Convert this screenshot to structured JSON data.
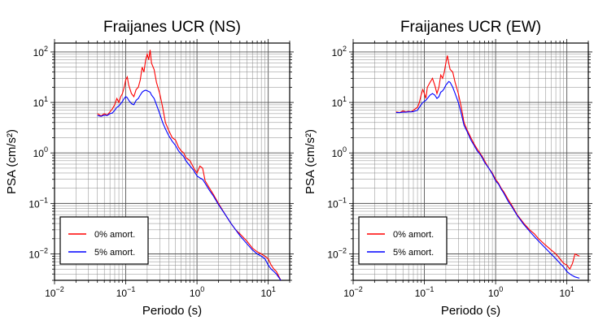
{
  "chart_data": [
    {
      "type": "line",
      "title": "Fraijanes UCR (NS)",
      "xlabel": "Periodo (s)",
      "ylabel": "PSA (cm/s²)",
      "xscale": "log",
      "yscale": "log",
      "xlim": [
        0.01,
        20
      ],
      "ylim": [
        0.003,
        150
      ],
      "grid": true,
      "legend_position": "bottom-left",
      "x_ticks": [
        {
          "base": "10",
          "exp": "−2"
        },
        {
          "base": "10",
          "exp": "−1"
        },
        {
          "base": "10",
          "exp": "0"
        },
        {
          "base": "10",
          "exp": "1"
        }
      ],
      "y_ticks": [
        {
          "base": "10",
          "exp": "−2"
        },
        {
          "base": "10",
          "exp": "−1"
        },
        {
          "base": "10",
          "exp": "0"
        },
        {
          "base": "10",
          "exp": "1"
        },
        {
          "base": "10",
          "exp": "2"
        }
      ],
      "series": [
        {
          "name": "0% amort.",
          "color": "#ff0000",
          "x": [
            0.04,
            0.045,
            0.05,
            0.055,
            0.06,
            0.065,
            0.07,
            0.075,
            0.08,
            0.085,
            0.09,
            0.095,
            0.1,
            0.105,
            0.11,
            0.12,
            0.13,
            0.14,
            0.15,
            0.16,
            0.17,
            0.18,
            0.19,
            0.2,
            0.21,
            0.22,
            0.23,
            0.25,
            0.27,
            0.3,
            0.33,
            0.36,
            0.4,
            0.45,
            0.5,
            0.55,
            0.6,
            0.65,
            0.7,
            0.8,
            0.9,
            1.0,
            1.1,
            1.2,
            1.3,
            1.5,
            1.7,
            2.0,
            2.5,
            3.0,
            3.5,
            4.0,
            5.0,
            6.0,
            7.0,
            8.0,
            9.0,
            10.0,
            11.0,
            12.0,
            13.0,
            15.0
          ],
          "y": [
            6.0,
            5.4,
            6.0,
            5.6,
            6.5,
            7.5,
            9.0,
            12.0,
            10.0,
            13.0,
            15.0,
            20.0,
            28.0,
            32.0,
            22.0,
            15.0,
            13.0,
            18.0,
            20.0,
            28.0,
            50.0,
            40.0,
            70.0,
            90.0,
            70.0,
            110.0,
            60.0,
            45.0,
            25.0,
            15.0,
            8.0,
            4.0,
            2.8,
            2.0,
            1.8,
            1.3,
            1.1,
            1.0,
            0.8,
            0.7,
            0.5,
            0.4,
            0.55,
            0.5,
            0.28,
            0.2,
            0.15,
            0.1,
            0.06,
            0.04,
            0.03,
            0.025,
            0.018,
            0.013,
            0.011,
            0.01,
            0.009,
            0.008,
            0.006,
            0.005,
            0.0045,
            0.003
          ]
        },
        {
          "name": "5% amort.",
          "color": "#0000ff",
          "x": [
            0.04,
            0.045,
            0.05,
            0.055,
            0.06,
            0.065,
            0.07,
            0.075,
            0.08,
            0.085,
            0.09,
            0.095,
            0.1,
            0.105,
            0.11,
            0.12,
            0.13,
            0.14,
            0.15,
            0.16,
            0.17,
            0.18,
            0.19,
            0.2,
            0.21,
            0.22,
            0.23,
            0.25,
            0.27,
            0.3,
            0.33,
            0.36,
            0.4,
            0.45,
            0.5,
            0.55,
            0.6,
            0.65,
            0.7,
            0.8,
            0.9,
            1.0,
            1.1,
            1.2,
            1.3,
            1.5,
            1.7,
            2.0,
            2.5,
            3.0,
            3.5,
            4.0,
            5.0,
            6.0,
            7.0,
            8.0,
            9.0,
            10.0,
            11.0,
            12.0,
            13.0,
            15.0
          ],
          "y": [
            5.5,
            5.3,
            5.6,
            5.5,
            6.0,
            6.2,
            7.0,
            8.0,
            8.5,
            9.5,
            10.5,
            12.0,
            13.0,
            12.5,
            11.0,
            9.5,
            9.0,
            11.0,
            12.0,
            14.0,
            16.0,
            17.0,
            17.5,
            17.0,
            16.5,
            16.0,
            14.0,
            12.0,
            9.0,
            6.0,
            4.0,
            3.0,
            2.2,
            1.7,
            1.4,
            1.1,
            0.95,
            0.85,
            0.7,
            0.55,
            0.45,
            0.35,
            0.32,
            0.3,
            0.25,
            0.18,
            0.14,
            0.095,
            0.06,
            0.04,
            0.03,
            0.023,
            0.016,
            0.012,
            0.01,
            0.009,
            0.008,
            0.006,
            0.005,
            0.0045,
            0.004,
            0.003
          ]
        }
      ]
    },
    {
      "type": "line",
      "title": "Fraijanes UCR (EW)",
      "xlabel": "Periodo (s)",
      "ylabel": "PSA (cm/s²)",
      "xscale": "log",
      "yscale": "log",
      "xlim": [
        0.01,
        20
      ],
      "ylim": [
        0.003,
        150
      ],
      "grid": true,
      "legend_position": "bottom-left",
      "x_ticks": [
        {
          "base": "10",
          "exp": "−2"
        },
        {
          "base": "10",
          "exp": "−1"
        },
        {
          "base": "10",
          "exp": "0"
        },
        {
          "base": "10",
          "exp": "1"
        }
      ],
      "y_ticks": [
        {
          "base": "10",
          "exp": "−2"
        },
        {
          "base": "10",
          "exp": "−1"
        },
        {
          "base": "10",
          "exp": "0"
        },
        {
          "base": "10",
          "exp": "1"
        },
        {
          "base": "10",
          "exp": "2"
        }
      ],
      "series": [
        {
          "name": "0% amort.",
          "color": "#ff0000",
          "x": [
            0.04,
            0.045,
            0.05,
            0.055,
            0.06,
            0.065,
            0.07,
            0.075,
            0.08,
            0.085,
            0.09,
            0.095,
            0.1,
            0.105,
            0.11,
            0.12,
            0.13,
            0.14,
            0.15,
            0.16,
            0.17,
            0.18,
            0.19,
            0.2,
            0.21,
            0.22,
            0.23,
            0.25,
            0.27,
            0.3,
            0.33,
            0.36,
            0.4,
            0.45,
            0.5,
            0.55,
            0.6,
            0.65,
            0.7,
            0.8,
            0.9,
            1.0,
            1.1,
            1.2,
            1.3,
            1.5,
            1.7,
            2.0,
            2.5,
            3.0,
            3.5,
            4.0,
            5.0,
            6.0,
            7.0,
            8.0,
            9.0,
            10.0,
            11.0,
            12.0,
            13.0,
            15.0
          ],
          "y": [
            6.5,
            6.3,
            6.8,
            6.5,
            6.7,
            6.5,
            7.0,
            7.5,
            8.0,
            10.0,
            14.0,
            18.0,
            15.0,
            12.0,
            20.0,
            25.0,
            30.0,
            22.0,
            15.0,
            20.0,
            35.0,
            30.0,
            40.0,
            60.0,
            85.0,
            60.0,
            45.0,
            40.0,
            25.0,
            15.0,
            8.0,
            4.0,
            2.8,
            2.0,
            1.5,
            1.2,
            1.0,
            0.85,
            0.7,
            0.5,
            0.4,
            0.3,
            0.25,
            0.2,
            0.17,
            0.12,
            0.09,
            0.06,
            0.04,
            0.03,
            0.025,
            0.02,
            0.015,
            0.012,
            0.01,
            0.008,
            0.0065,
            0.006,
            0.005,
            0.0065,
            0.01,
            0.009
          ]
        },
        {
          "name": "5% amort.",
          "color": "#0000ff",
          "x": [
            0.04,
            0.045,
            0.05,
            0.055,
            0.06,
            0.065,
            0.07,
            0.075,
            0.08,
            0.085,
            0.09,
            0.095,
            0.1,
            0.105,
            0.11,
            0.12,
            0.13,
            0.14,
            0.15,
            0.16,
            0.17,
            0.18,
            0.19,
            0.2,
            0.21,
            0.22,
            0.23,
            0.25,
            0.27,
            0.3,
            0.33,
            0.36,
            0.4,
            0.45,
            0.5,
            0.55,
            0.6,
            0.65,
            0.7,
            0.8,
            0.9,
            1.0,
            1.1,
            1.2,
            1.3,
            1.5,
            1.7,
            2.0,
            2.5,
            3.0,
            3.5,
            4.0,
            5.0,
            6.0,
            7.0,
            8.0,
            9.0,
            10.0,
            11.0,
            12.0,
            13.0,
            15.0
          ],
          "y": [
            6.3,
            6.3,
            6.4,
            6.4,
            6.5,
            6.5,
            6.6,
            6.8,
            7.0,
            8.0,
            9.0,
            10.0,
            10.5,
            11.0,
            12.0,
            14.0,
            15.0,
            14.0,
            12.0,
            13.0,
            16.0,
            17.0,
            19.0,
            22.0,
            24.0,
            26.0,
            25.0,
            20.0,
            15.0,
            10.0,
            6.0,
            3.5,
            2.6,
            1.8,
            1.4,
            1.1,
            0.95,
            0.8,
            0.65,
            0.5,
            0.38,
            0.28,
            0.24,
            0.19,
            0.16,
            0.11,
            0.085,
            0.058,
            0.038,
            0.028,
            0.022,
            0.018,
            0.013,
            0.01,
            0.008,
            0.0065,
            0.0055,
            0.0045,
            0.004,
            0.0037,
            0.0035,
            0.0033
          ]
        }
      ]
    }
  ]
}
